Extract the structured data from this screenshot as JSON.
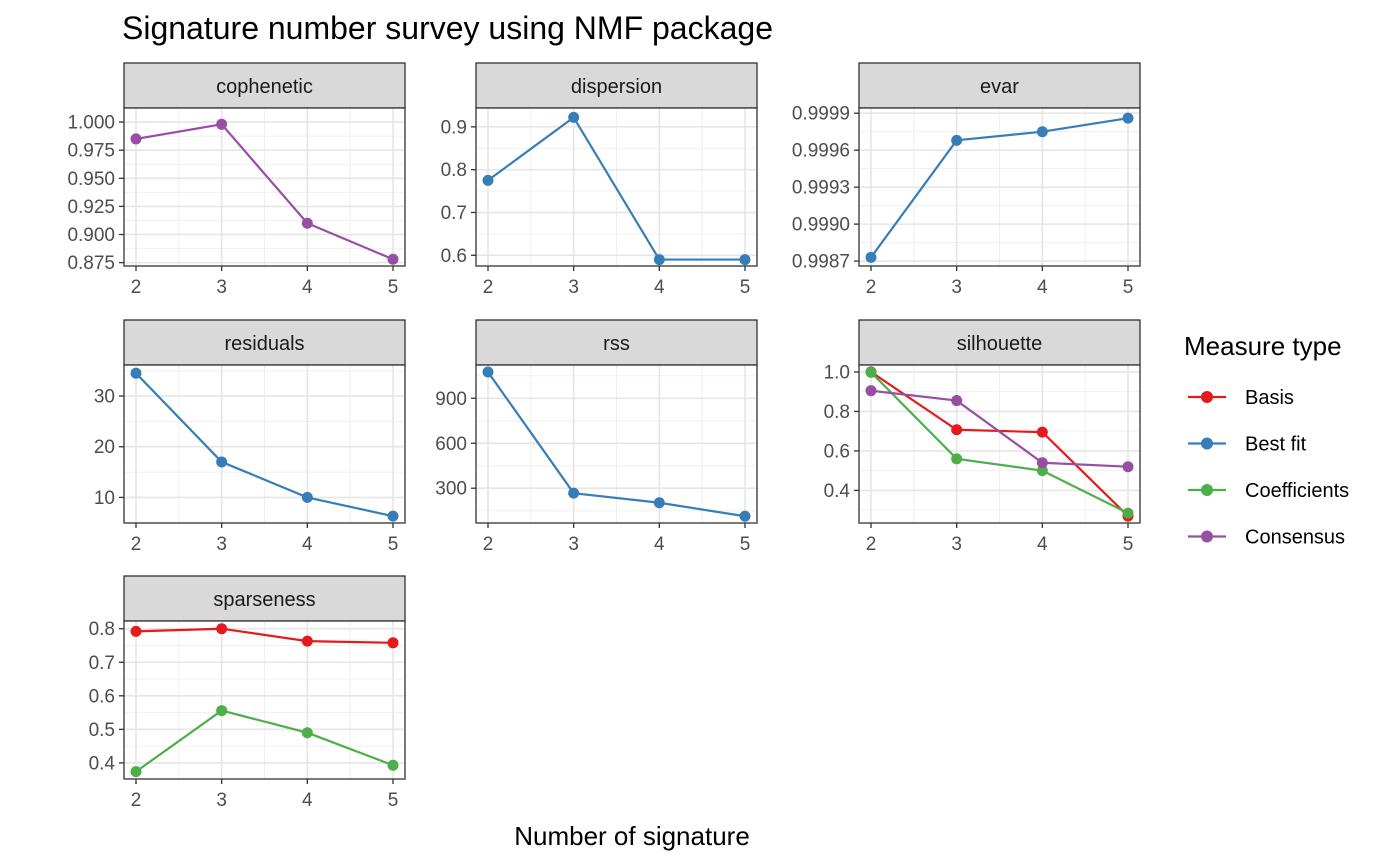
{
  "title": "Signature number survey using NMF package",
  "xlabel": "Number of signature",
  "legend": {
    "title": "Measure type",
    "items": [
      {
        "name": "Basis",
        "color": "#E41A1C"
      },
      {
        "name": "Best fit",
        "color": "#377EB8"
      },
      {
        "name": "Coefficients",
        "color": "#4DAF4A"
      },
      {
        "name": "Consensus",
        "color": "#984EA3"
      }
    ]
  },
  "chart_data": [
    {
      "type": "line",
      "panel": "cophenetic",
      "x": [
        2,
        3,
        4,
        5
      ],
      "ylim": [
        0.872,
        1.0125
      ],
      "yticks": [
        1.0,
        0.975,
        0.95,
        0.925,
        0.9,
        0.875
      ],
      "ytick_labels": [
        "1.000",
        "0.975",
        "0.950",
        "0.925",
        "0.900",
        "0.875"
      ],
      "series": [
        {
          "name": "Consensus",
          "values": [
            0.985,
            0.998,
            0.91,
            0.878
          ]
        }
      ]
    },
    {
      "type": "line",
      "panel": "dispersion",
      "x": [
        2,
        3,
        4,
        5
      ],
      "ylim": [
        0.575,
        0.944
      ],
      "yticks": [
        0.9,
        0.8,
        0.7,
        0.6
      ],
      "ytick_labels": [
        "0.9",
        "0.8",
        "0.7",
        "0.6"
      ],
      "series": [
        {
          "name": "Best fit",
          "values": [
            0.775,
            0.922,
            0.59,
            0.59
          ]
        }
      ]
    },
    {
      "type": "line",
      "panel": "evar",
      "x": [
        2,
        3,
        4,
        5
      ],
      "ylim": [
        0.99866,
        0.9999425
      ],
      "yticks": [
        0.9999,
        0.9996,
        0.9993,
        0.999,
        0.9987
      ],
      "ytick_labels": [
        "0.9999",
        "0.9996",
        "0.9993",
        "0.9990",
        "0.9987"
      ],
      "series": [
        {
          "name": "Best fit",
          "values": [
            0.99873,
            0.99968,
            0.99975,
            0.99986
          ]
        }
      ]
    },
    {
      "type": "line",
      "panel": "residuals",
      "x": [
        2,
        3,
        4,
        5
      ],
      "ylim": [
        4.95,
        36.13
      ],
      "yticks": [
        30,
        20,
        10
      ],
      "ytick_labels": [
        "30",
        "20",
        "10"
      ],
      "series": [
        {
          "name": "Best fit",
          "values": [
            34.5,
            17,
            10,
            6.3
          ]
        }
      ]
    },
    {
      "type": "line",
      "panel": "rss",
      "x": [
        2,
        3,
        4,
        5
      ],
      "ylim": [
        68,
        1122
      ],
      "yticks": [
        900,
        600,
        300
      ],
      "ytick_labels": [
        "900",
        "600",
        "300"
      ],
      "series": [
        {
          "name": "Best fit",
          "values": [
            1075,
            267,
            203,
            113
          ]
        }
      ]
    },
    {
      "type": "line",
      "panel": "silhouette",
      "x": [
        2,
        3,
        4,
        5
      ],
      "ylim": [
        0.235,
        1.035
      ],
      "yticks": [
        1.0,
        0.8,
        0.6,
        0.4
      ],
      "ytick_labels": [
        "1.0",
        "0.8",
        "0.6",
        "0.4"
      ],
      "series": [
        {
          "name": "Basis",
          "values": [
            1.0,
            0.707,
            0.695,
            0.27
          ]
        },
        {
          "name": "Coefficients",
          "values": [
            0.998,
            0.56,
            0.5,
            0.285
          ]
        },
        {
          "name": "Consensus",
          "values": [
            0.905,
            0.855,
            0.54,
            0.52
          ]
        }
      ]
    },
    {
      "type": "line",
      "panel": "sparseness",
      "x": [
        2,
        3,
        4,
        5
      ],
      "ylim": [
        0.352,
        0.823
      ],
      "yticks": [
        0.8,
        0.7,
        0.6,
        0.5,
        0.4
      ],
      "ytick_labels": [
        "0.8",
        "0.7",
        "0.6",
        "0.5",
        "0.4"
      ],
      "series": [
        {
          "name": "Basis",
          "values": [
            0.792,
            0.8,
            0.763,
            0.758
          ]
        },
        {
          "name": "Coefficients",
          "values": [
            0.374,
            0.556,
            0.49,
            0.393
          ]
        }
      ]
    }
  ]
}
